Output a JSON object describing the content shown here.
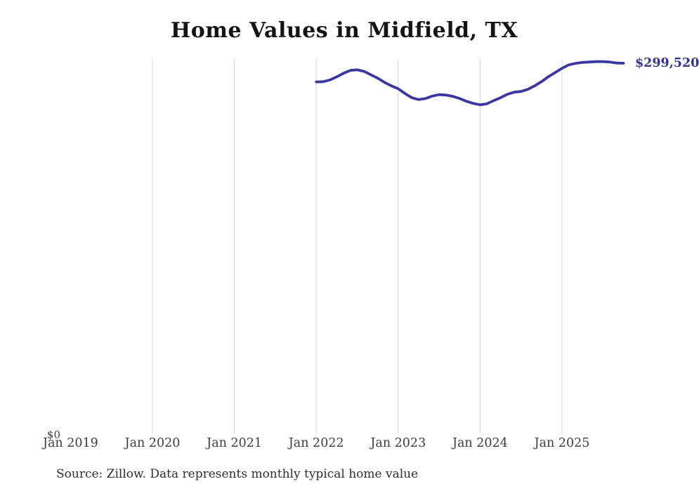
{
  "title": "Home Values in Midfield, TX",
  "source_note": "Source: Zillow. Data represents monthly typical home value",
  "chart_data": {
    "type": "line",
    "title": "Home Values in Midfield, TX",
    "xlabel": "",
    "ylabel": "",
    "ylim": [
      0,
      310000
    ],
    "grid": "vertical-only",
    "legend": "none",
    "line_color": "#3a36a4",
    "gridline_color": "#d8d8d8",
    "y_zero_label": "$0",
    "end_value_label": "$299,520",
    "end_value": 299520,
    "x_tick_labels": [
      "Jan 2019",
      "Jan 2020",
      "Jan 2021",
      "Jan 2022",
      "Jan 2023",
      "Jan 2024",
      "Jan 2025"
    ],
    "x_tick_years": [
      2019,
      2020,
      2021,
      2022,
      2023,
      2024,
      2025
    ],
    "gridline_years": [
      2020,
      2021,
      2022,
      2023,
      2024,
      2025
    ],
    "series": [
      {
        "name": "Typical home value",
        "x": [
          "2022-01",
          "2022-02",
          "2022-03",
          "2022-04",
          "2022-05",
          "2022-06",
          "2022-07",
          "2022-08",
          "2022-09",
          "2022-10",
          "2022-11",
          "2022-12",
          "2023-01",
          "2023-02",
          "2023-03",
          "2023-04",
          "2023-05",
          "2023-06",
          "2023-07",
          "2023-08",
          "2023-09",
          "2023-10",
          "2023-11",
          "2023-12",
          "2024-01",
          "2024-02",
          "2024-03",
          "2024-04",
          "2024-05",
          "2024-06",
          "2024-07",
          "2024-08",
          "2024-09",
          "2024-10",
          "2024-11",
          "2024-12",
          "2025-01",
          "2025-02",
          "2025-03",
          "2025-04",
          "2025-05",
          "2025-06",
          "2025-07",
          "2025-08",
          "2025-09",
          "2025-10"
        ],
        "values": [
          284400,
          284600,
          286000,
          288500,
          291400,
          293700,
          294200,
          292900,
          290200,
          287400,
          284000,
          281200,
          278900,
          275000,
          271600,
          270100,
          271000,
          272900,
          274100,
          273800,
          272700,
          271000,
          268700,
          267000,
          265900,
          266700,
          269300,
          271600,
          274400,
          276100,
          276700,
          278400,
          281200,
          284600,
          288600,
          292000,
          295400,
          298200,
          299400,
          300200,
          300500,
          300800,
          300800,
          300500,
          299700,
          299520
        ]
      }
    ]
  }
}
